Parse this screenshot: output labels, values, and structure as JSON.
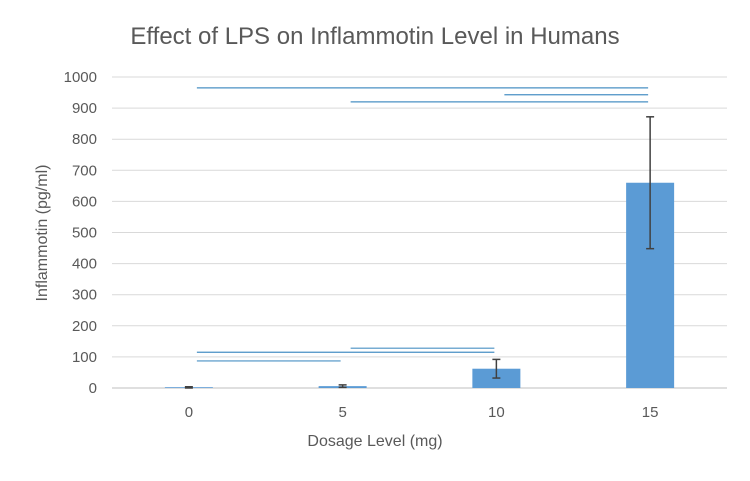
{
  "chart_data": {
    "type": "bar",
    "title": "Effect of LPS on Inflammotin Level in Humans",
    "xlabel": "Dosage Level (mg)",
    "ylabel": "Inflammotin (pg/ml)",
    "categories": [
      "0",
      "5",
      "10",
      "15"
    ],
    "values": [
      2,
      6,
      62,
      660
    ],
    "error": [
      2,
      4,
      30,
      212
    ],
    "ylim": [
      0,
      1000
    ],
    "yticks": [
      "0",
      "100",
      "200",
      "300",
      "400",
      "500",
      "600",
      "700",
      "800",
      "900",
      "1000"
    ],
    "grid": true,
    "legend": "none",
    "bar_color": "#5b9bd5",
    "comparison_line_color": "#4a90c4",
    "comparison_lines": [
      {
        "from": "0",
        "to": "15",
        "y": 965
      },
      {
        "from": "10",
        "to": "15",
        "y": 943
      },
      {
        "from": "5",
        "to": "15",
        "y": 920
      },
      {
        "from": "5",
        "to": "10",
        "y": 128
      },
      {
        "from": "0",
        "to": "10",
        "y": 115
      },
      {
        "from": "0",
        "to": "5",
        "y": 87
      }
    ]
  }
}
